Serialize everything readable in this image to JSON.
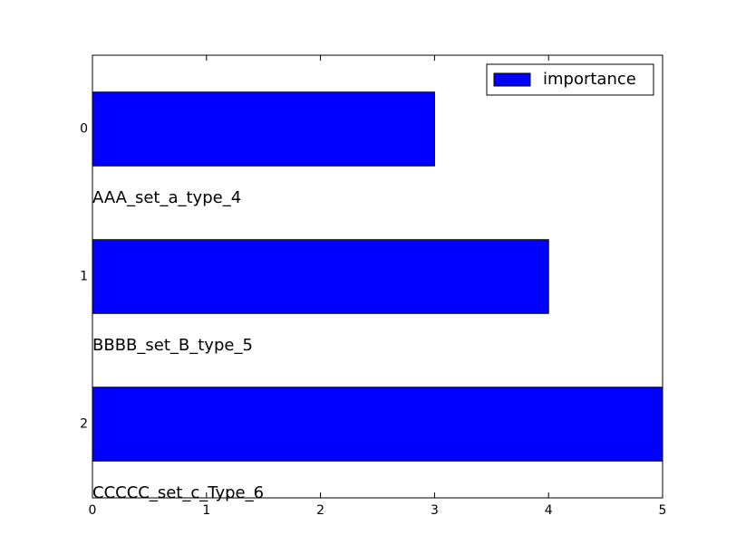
{
  "chart_data": {
    "type": "barh",
    "categories": [
      "0",
      "1",
      "2"
    ],
    "series": [
      {
        "name": "importance",
        "color": "#0000ff",
        "values": [
          3,
          4,
          5
        ]
      }
    ],
    "annotations": [
      "AAA_set_a_type_4",
      "BBBB_set_B_type_5",
      "CCCCC_set_c_Type_6"
    ],
    "xlim": [
      0,
      5
    ],
    "xticks": [
      0,
      1,
      2,
      3,
      4,
      5
    ],
    "legend": "upper right"
  }
}
